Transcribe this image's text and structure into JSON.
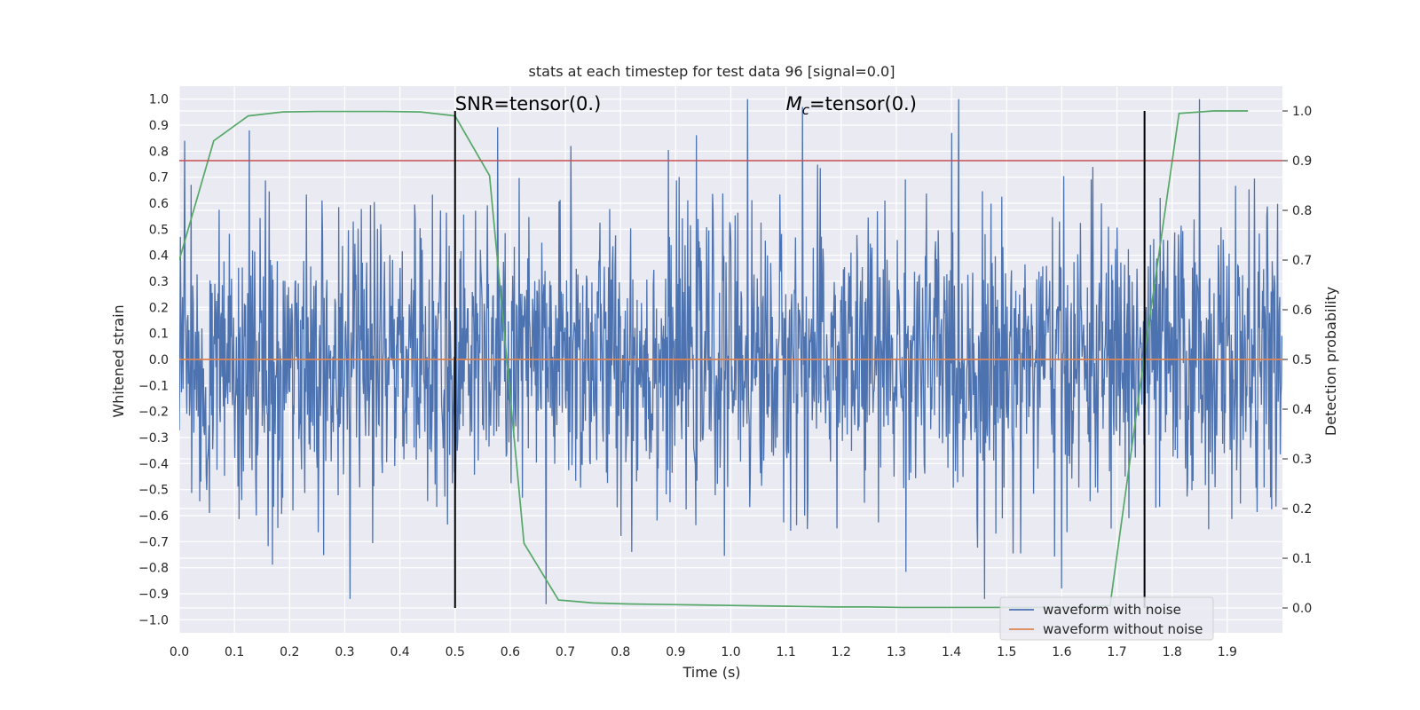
{
  "chart_data": {
    "type": "line",
    "title": "stats at each timestep for test data 96 [signal=0.0]",
    "xlabel": "Time (s)",
    "ylabel": "Whitened strain",
    "y2label": "Detection probability",
    "xlim": [
      0.0,
      2.0
    ],
    "ylim": [
      -1.05,
      1.05
    ],
    "y2lim": [
      -0.05,
      1.05
    ],
    "xticks": [
      "0.0",
      "0.1",
      "0.2",
      "0.3",
      "0.4",
      "0.5",
      "0.6",
      "0.7",
      "0.8",
      "0.9",
      "1.0",
      "1.1",
      "1.2",
      "1.3",
      "1.4",
      "1.5",
      "1.6",
      "1.7",
      "1.8",
      "1.9"
    ],
    "yticks": [
      "1.0",
      "0.9",
      "0.8",
      "0.7",
      "0.6",
      "0.5",
      "0.4",
      "0.3",
      "0.2",
      "0.1",
      "0.0",
      "−0.1",
      "−0.2",
      "−0.3",
      "−0.4",
      "−0.5",
      "−0.6",
      "−0.7",
      "−0.8",
      "−0.9",
      "−1.0"
    ],
    "y2ticks": [
      "1.0",
      "0.9",
      "0.8",
      "0.7",
      "0.6",
      "0.5",
      "0.4",
      "0.3",
      "0.2",
      "0.1",
      "0.0"
    ],
    "grid": true,
    "legend_placement": "lower-right",
    "background": "#eaeaf2",
    "series": [
      {
        "name": "waveform with noise",
        "axis": "left",
        "color": "#4c72b0",
        "kind": "noise",
        "x_range": [
          0.0,
          2.0
        ],
        "sample_count": 2048,
        "y_range_observed": [
          -0.94,
          1.0
        ],
        "peaks": [
          {
            "x": 0.01,
            "y": 0.84
          },
          {
            "x": 0.127,
            "y": 0.88
          },
          {
            "x": 0.31,
            "y": -0.92
          },
          {
            "x": 0.665,
            "y": -0.94
          },
          {
            "x": 0.71,
            "y": 0.82
          },
          {
            "x": 1.03,
            "y": 1.0
          },
          {
            "x": 1.13,
            "y": 0.97
          },
          {
            "x": 1.4,
            "y": 0.87
          },
          {
            "x": 1.46,
            "y": -0.92
          },
          {
            "x": 1.6,
            "y": -0.88
          },
          {
            "x": 1.85,
            "y": 1.0
          }
        ]
      },
      {
        "name": "waveform without noise",
        "axis": "left",
        "color": "#dd8452",
        "x": [
          0.0,
          2.0
        ],
        "y": [
          0.0,
          0.0
        ]
      },
      {
        "name": "",
        "axis": "right",
        "color": "#55a868",
        "x": [
          0.0,
          0.0625,
          0.125,
          0.1875,
          0.25,
          0.3125,
          0.375,
          0.4375,
          0.5,
          0.5625,
          0.625,
          0.6875,
          0.75,
          0.8125,
          0.875,
          0.9375,
          1.0,
          1.0625,
          1.125,
          1.1875,
          1.25,
          1.3125,
          1.375,
          1.4375,
          1.5,
          1.5625,
          1.625,
          1.6875,
          1.75,
          1.8125,
          1.875,
          1.9375
        ],
        "y": [
          0.7,
          0.94,
          0.99,
          0.998,
          0.999,
          0.999,
          0.999,
          0.998,
          0.99,
          0.87,
          0.13,
          0.016,
          0.01,
          0.008,
          0.007,
          0.006,
          0.005,
          0.004,
          0.003,
          0.002,
          0.002,
          0.001,
          0.001,
          0.001,
          0.001,
          0.001,
          0.001,
          0.005,
          0.51,
          0.995,
          1.0,
          1.0
        ]
      }
    ],
    "hlines": [
      {
        "y": 0.9,
        "axis": "right",
        "color": "#c44e52"
      }
    ],
    "vlines": [
      {
        "x": 0.5,
        "y2_from": 0.0,
        "y2_to": 1.0,
        "color": "#000000"
      },
      {
        "x": 1.75,
        "y2_from": 0.0,
        "y2_to": 1.0,
        "color": "#000000"
      }
    ],
    "annotations": [
      {
        "x": 0.5,
        "y2": 1.0,
        "text_parts": [
          {
            "t": "SNR=tensor(0.)",
            "italic": false
          }
        ]
      },
      {
        "x": 1.1,
        "y2": 1.0,
        "text_parts": [
          {
            "t": "M",
            "italic": true
          },
          {
            "t": "c",
            "italic": true,
            "sub": true
          },
          {
            "t": "=tensor(0.)",
            "italic": false
          }
        ]
      }
    ],
    "legend": [
      {
        "label": "waveform with noise",
        "color": "#4c72b0"
      },
      {
        "label": "waveform without noise",
        "color": "#dd8452"
      }
    ]
  }
}
